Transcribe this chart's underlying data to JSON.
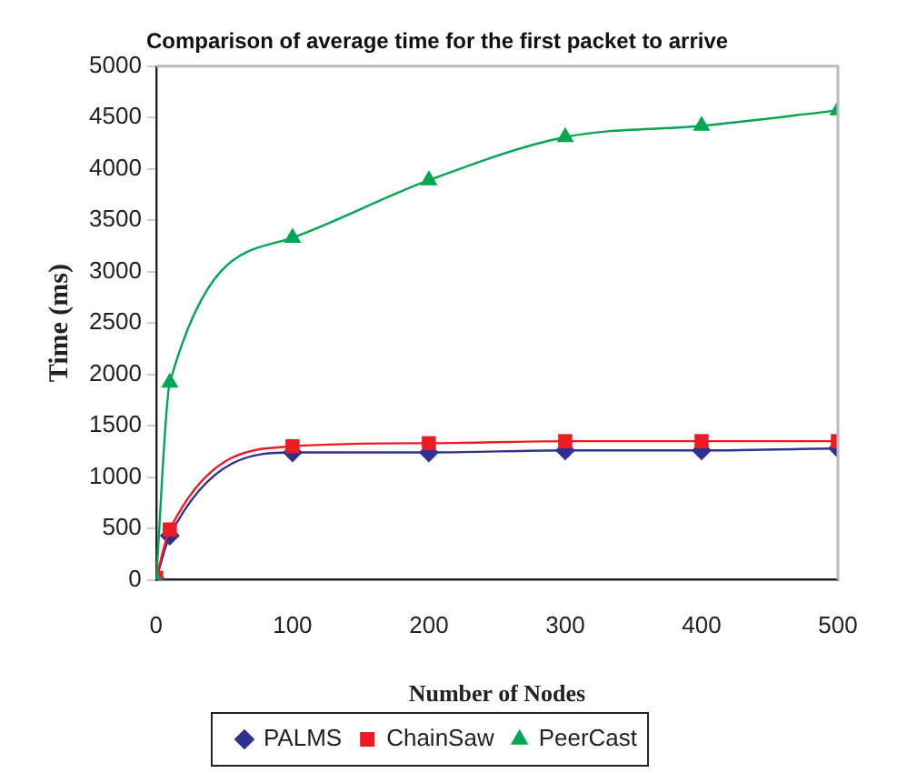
{
  "chart_data": {
    "type": "line",
    "title": "Comparison of average time for the first packet to arrive",
    "xlabel": "Number of Nodes",
    "ylabel": "Time (ms)",
    "x": [
      0,
      10,
      100,
      200,
      300,
      400,
      500
    ],
    "series": [
      {
        "name": "PALMS",
        "color": "#2e3192",
        "marker": "diamond",
        "values": [
          0,
          430,
          1240,
          1240,
          1260,
          1260,
          1280
        ]
      },
      {
        "name": "ChainSaw",
        "color": "#ed1c24",
        "marker": "square",
        "values": [
          20,
          490,
          1300,
          1330,
          1350,
          1350,
          1350
        ]
      },
      {
        "name": "PeerCast",
        "color": "#00a651",
        "marker": "triangle",
        "values": [
          0,
          1920,
          3330,
          3890,
          4310,
          4420,
          4570
        ]
      }
    ],
    "xlim": [
      0,
      500
    ],
    "xticks": [
      0,
      100,
      200,
      300,
      400,
      500
    ],
    "ylim": [
      0,
      5000
    ],
    "yticks": [
      0,
      500,
      1000,
      1500,
      2000,
      2500,
      3000,
      3500,
      4000,
      4500,
      5000
    ],
    "grid": false,
    "legend": "bottom",
    "line_style": "solid"
  }
}
